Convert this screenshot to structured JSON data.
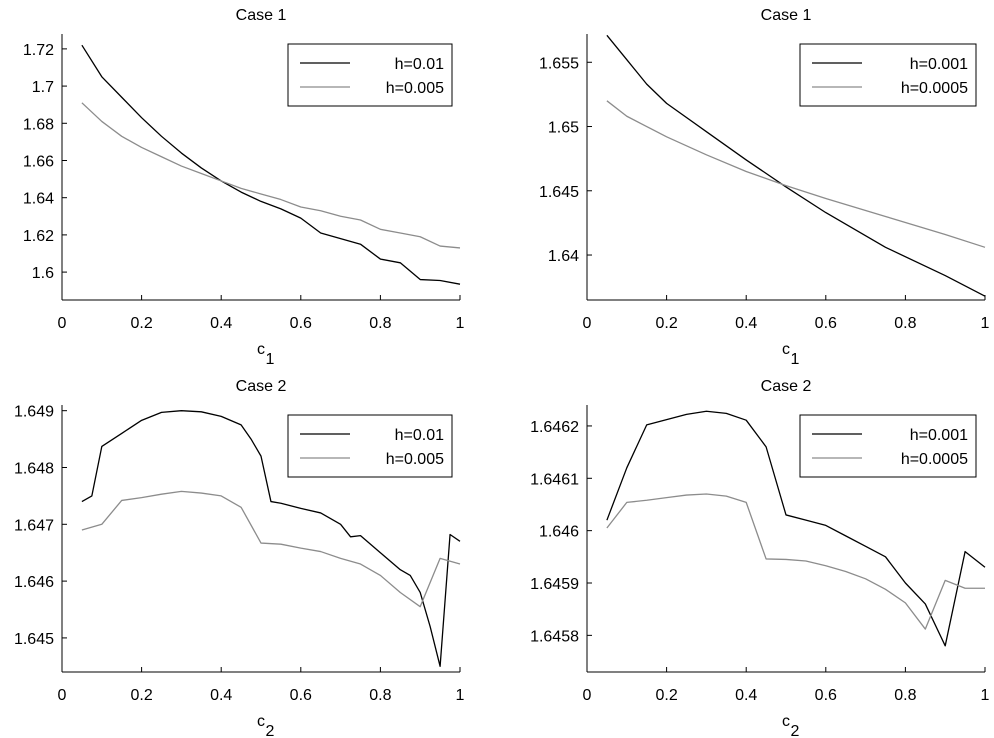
{
  "colors": {
    "series_dark": "#000000",
    "series_light": "#8c8c8c",
    "axis": "#000000",
    "background": "#ffffff"
  },
  "chart_data": [
    {
      "type": "line",
      "title": "Case 1",
      "xlabel": "c",
      "xlabel_sub": "1",
      "ylabel": "",
      "xlim": [
        0,
        1
      ],
      "ylim": [
        1.585,
        1.728
      ],
      "xticks": [
        0,
        0.2,
        0.4,
        0.6,
        0.8,
        1
      ],
      "xtick_labels": [
        "0",
        "0.2",
        "0.4",
        "0.6",
        "0.8",
        "1"
      ],
      "yticks": [
        1.6,
        1.62,
        1.64,
        1.66,
        1.68,
        1.7,
        1.72
      ],
      "ytick_labels": [
        "1.6",
        "1.62",
        "1.64",
        "1.66",
        "1.68",
        "1.7",
        "1.72"
      ],
      "legend_position": "top-right",
      "series": [
        {
          "name": "h=0.01",
          "color_key": "series_dark",
          "x": [
            0.05,
            0.1,
            0.15,
            0.2,
            0.25,
            0.3,
            0.35,
            0.4,
            0.45,
            0.5,
            0.55,
            0.6,
            0.65,
            0.7,
            0.75,
            0.8,
            0.85,
            0.9,
            0.95,
            1.0
          ],
          "values": [
            1.722,
            1.705,
            1.694,
            1.683,
            1.673,
            1.664,
            1.656,
            1.649,
            1.643,
            1.638,
            1.634,
            1.629,
            1.621,
            1.618,
            1.615,
            1.607,
            1.605,
            1.596,
            1.5955,
            1.5935
          ]
        },
        {
          "name": "h=0.005",
          "color_key": "series_light",
          "x": [
            0.05,
            0.1,
            0.15,
            0.2,
            0.25,
            0.3,
            0.35,
            0.4,
            0.45,
            0.5,
            0.55,
            0.6,
            0.65,
            0.7,
            0.75,
            0.8,
            0.85,
            0.9,
            0.95,
            1.0
          ],
          "values": [
            1.691,
            1.681,
            1.673,
            1.667,
            1.662,
            1.657,
            1.653,
            1.649,
            1.645,
            1.642,
            1.639,
            1.635,
            1.633,
            1.63,
            1.628,
            1.623,
            1.621,
            1.619,
            1.614,
            1.613
          ]
        }
      ]
    },
    {
      "type": "line",
      "title": "Case 1",
      "xlabel": "c",
      "xlabel_sub": "1",
      "ylabel": "",
      "xlim": [
        0,
        1
      ],
      "ylim": [
        1.6365,
        1.6572
      ],
      "xticks": [
        0,
        0.2,
        0.4,
        0.6,
        0.8,
        1
      ],
      "xtick_labels": [
        "0",
        "0.2",
        "0.4",
        "0.6",
        "0.8",
        "1"
      ],
      "yticks": [
        1.64,
        1.645,
        1.65,
        1.655
      ],
      "ytick_labels": [
        "1.64",
        "1.645",
        "1.65",
        "1.655"
      ],
      "legend_position": "top-right",
      "series": [
        {
          "name": "h=0.001",
          "color_key": "series_dark",
          "x": [
            0.05,
            0.1,
            0.15,
            0.2,
            0.3,
            0.4,
            0.5,
            0.6,
            0.75,
            0.9,
            1.0
          ],
          "values": [
            1.6571,
            1.6552,
            1.6533,
            1.6518,
            1.6496,
            1.6474,
            1.6453,
            1.6433,
            1.6406,
            1.6384,
            1.6368
          ]
        },
        {
          "name": "h=0.0005",
          "color_key": "series_light",
          "x": [
            0.05,
            0.1,
            0.15,
            0.2,
            0.3,
            0.4,
            0.5,
            0.6,
            0.75,
            0.9,
            1.0
          ],
          "values": [
            1.652,
            1.6508,
            1.65,
            1.6492,
            1.6478,
            1.6465,
            1.6454,
            1.6444,
            1.643,
            1.6416,
            1.6406
          ]
        }
      ]
    },
    {
      "type": "line",
      "title": "Case 2",
      "xlabel": "c",
      "xlabel_sub": "2",
      "ylabel": "",
      "xlim": [
        0,
        1
      ],
      "ylim": [
        1.6444,
        1.6491
      ],
      "xticks": [
        0,
        0.2,
        0.4,
        0.6,
        0.8,
        1
      ],
      "xtick_labels": [
        "0",
        "0.2",
        "0.4",
        "0.6",
        "0.8",
        "1"
      ],
      "yticks": [
        1.645,
        1.646,
        1.647,
        1.648,
        1.649
      ],
      "ytick_labels": [
        "1.645",
        "1.646",
        "1.647",
        "1.648",
        "1.649"
      ],
      "legend_position": "top-right",
      "series": [
        {
          "name": "h=0.01",
          "color_key": "series_dark",
          "x": [
            0.05,
            0.075,
            0.1,
            0.15,
            0.2,
            0.25,
            0.3,
            0.35,
            0.4,
            0.45,
            0.475,
            0.5,
            0.525,
            0.55,
            0.6,
            0.65,
            0.7,
            0.725,
            0.75,
            0.8,
            0.85,
            0.875,
            0.9,
            0.925,
            0.95,
            0.975,
            1.0
          ],
          "values": [
            1.6474,
            1.6475,
            1.64837,
            1.6486,
            1.64883,
            1.64897,
            1.649,
            1.64898,
            1.6489,
            1.64875,
            1.6485,
            1.6482,
            1.6474,
            1.64737,
            1.64728,
            1.6472,
            1.647,
            1.64678,
            1.6468,
            1.6465,
            1.6462,
            1.6461,
            1.6458,
            1.6452,
            1.6445,
            1.64682,
            1.6467
          ]
        },
        {
          "name": "h=0.005",
          "color_key": "series_light",
          "x": [
            0.05,
            0.1,
            0.15,
            0.2,
            0.25,
            0.3,
            0.35,
            0.4,
            0.45,
            0.5,
            0.55,
            0.6,
            0.65,
            0.7,
            0.75,
            0.8,
            0.85,
            0.9,
            0.95,
            1.0
          ],
          "values": [
            1.6469,
            1.647,
            1.64742,
            1.64747,
            1.64753,
            1.64758,
            1.64755,
            1.6475,
            1.6473,
            1.64667,
            1.64665,
            1.64658,
            1.64652,
            1.6464,
            1.6463,
            1.6461,
            1.6458,
            1.64555,
            1.6464,
            1.6463
          ]
        }
      ]
    },
    {
      "type": "line",
      "title": "Case 2",
      "xlabel": "c",
      "xlabel_sub": "2",
      "ylabel": "",
      "xlim": [
        0,
        1
      ],
      "ylim": [
        1.64573,
        1.64624
      ],
      "xticks": [
        0,
        0.2,
        0.4,
        0.6,
        0.8,
        1
      ],
      "xtick_labels": [
        "0",
        "0.2",
        "0.4",
        "0.6",
        "0.8",
        "1"
      ],
      "yticks": [
        1.6458,
        1.6459,
        1.646,
        1.6461,
        1.6462
      ],
      "ytick_labels": [
        "1.6458",
        "1.6459",
        "1.646",
        "1.6461",
        "1.6462"
      ],
      "legend_position": "top-right",
      "series": [
        {
          "name": "h=0.001",
          "color_key": "series_dark",
          "x": [
            0.05,
            0.1,
            0.15,
            0.2,
            0.25,
            0.3,
            0.35,
            0.4,
            0.45,
            0.5,
            0.55,
            0.6,
            0.65,
            0.7,
            0.75,
            0.8,
            0.85,
            0.9,
            0.95,
            1.0
          ],
          "values": [
            1.64602,
            1.64612,
            1.646202,
            1.646212,
            1.646222,
            1.646228,
            1.646224,
            1.646211,
            1.64616,
            1.64603,
            1.64602,
            1.64601,
            1.64599,
            1.64597,
            1.64595,
            1.6459,
            1.64586,
            1.64578,
            1.64596,
            1.64593
          ]
        },
        {
          "name": "h=0.0005",
          "color_key": "series_light",
          "x": [
            0.05,
            0.1,
            0.15,
            0.2,
            0.25,
            0.3,
            0.35,
            0.4,
            0.45,
            0.5,
            0.55,
            0.6,
            0.65,
            0.7,
            0.75,
            0.8,
            0.85,
            0.9,
            0.95,
            1.0
          ],
          "values": [
            1.646005,
            1.646054,
            1.646058,
            1.646063,
            1.646068,
            1.64607,
            1.646066,
            1.646054,
            1.645946,
            1.645945,
            1.645942,
            1.645933,
            1.645922,
            1.645908,
            1.645888,
            1.645862,
            1.645812,
            1.645905,
            1.64589,
            1.64589
          ]
        }
      ]
    }
  ]
}
